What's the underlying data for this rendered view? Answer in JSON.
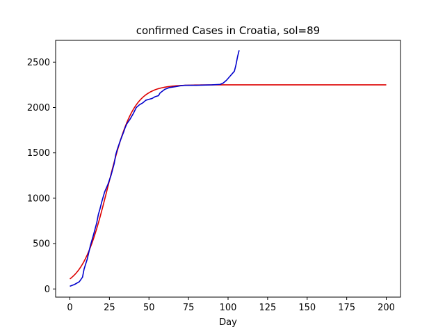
{
  "chart_data": {
    "type": "line",
    "title": "confirmed Cases in Croatia, sol=89",
    "xlabel": "Day",
    "ylabel": "",
    "xlim": [
      -9,
      209
    ],
    "ylim": [
      -90,
      2740
    ],
    "xticks": [
      0,
      25,
      50,
      75,
      100,
      125,
      150,
      175,
      200
    ],
    "yticks": [
      0,
      500,
      1000,
      1500,
      2000,
      2500
    ],
    "grid": false,
    "legend": "none",
    "series": [
      {
        "color": "#dd0000",
        "model": "logistic",
        "params": {
          "K": 2250,
          "r": 0.1235,
          "t0": 24.0
        },
        "x_range": [
          0,
          200
        ],
        "x": [
          0,
          5,
          10,
          15,
          20,
          25,
          30,
          35,
          40,
          45,
          50,
          55,
          60,
          65,
          70,
          75,
          80,
          90,
          100,
          125,
          150,
          175,
          200
        ],
        "values": [
          110,
          220,
          420,
          720,
          1060,
          1350,
          1750,
          1980,
          2100,
          2170,
          2210,
          2230,
          2240,
          2245,
          2248,
          2249,
          2250,
          2250,
          2250,
          2250,
          2250,
          2250,
          2250
        ]
      },
      {
        "color": "#0000cc",
        "x": [
          0,
          3,
          6,
          8,
          9,
          11,
          13,
          15,
          17,
          18,
          19,
          20,
          22,
          24,
          25,
          26,
          28,
          29,
          30,
          32,
          34,
          35,
          36,
          38,
          40,
          42,
          44,
          46,
          48,
          50,
          52,
          54,
          56,
          57,
          60,
          63,
          67,
          70,
          73,
          80,
          90,
          95,
          97,
          99,
          101,
          103,
          104,
          105,
          106,
          107
        ],
        "values": [
          30,
          50,
          80,
          130,
          220,
          330,
          480,
          600,
          730,
          820,
          880,
          950,
          1070,
          1150,
          1200,
          1250,
          1380,
          1480,
          1540,
          1640,
          1730,
          1780,
          1820,
          1870,
          1930,
          2000,
          2030,
          2050,
          2080,
          2090,
          2100,
          2120,
          2130,
          2160,
          2200,
          2220,
          2230,
          2240,
          2245,
          2245,
          2250,
          2255,
          2270,
          2300,
          2340,
          2380,
          2400,
          2470,
          2560,
          2630
        ]
      }
    ]
  }
}
